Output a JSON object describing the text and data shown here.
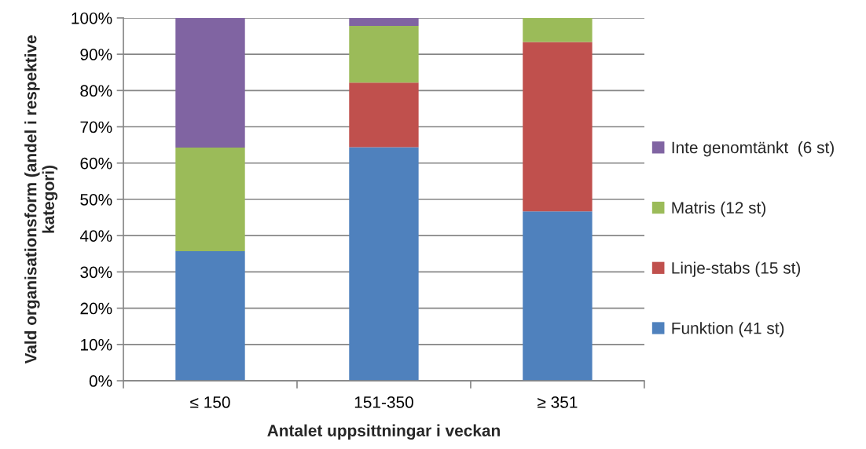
{
  "chart_data": {
    "type": "bar",
    "stacked": true,
    "categories": [
      "≤ 150",
      "151-350",
      "≥ 351"
    ],
    "series": [
      {
        "name": "Funktion (41 st)",
        "color": "#4f81bd",
        "values": [
          35.7,
          64.4,
          46.7
        ]
      },
      {
        "name": "Linje-stabs (15 st)",
        "color": "#c0504d",
        "values": [
          null,
          17.8,
          46.7
        ]
      },
      {
        "name": "Matris (12 st)",
        "color": "#9bbb59",
        "values": [
          28.6,
          15.6,
          6.6
        ]
      },
      {
        "name": "Inte genomtänkt  (6 st)",
        "color": "#8064a2",
        "values": [
          35.7,
          2.2,
          null
        ]
      }
    ],
    "xlabel": "Antalet uppsittningar i veckan",
    "ylabel": "Vald organisationsform (andel i respektive kategori)",
    "ylim": [
      0,
      100
    ],
    "yticks": [
      {
        "value": 0,
        "label": "0%"
      },
      {
        "value": 10,
        "label": "10%"
      },
      {
        "value": 20,
        "label": "20%"
      },
      {
        "value": 30,
        "label": "30%"
      },
      {
        "value": 40,
        "label": "40%"
      },
      {
        "value": 50,
        "label": "50%"
      },
      {
        "value": 60,
        "label": "60%"
      },
      {
        "value": 70,
        "label": "70%"
      },
      {
        "value": 80,
        "label": "80%"
      },
      {
        "value": 90,
        "label": "90%"
      },
      {
        "value": 100,
        "label": "100%"
      }
    ],
    "grid": "y",
    "legend": "right"
  }
}
